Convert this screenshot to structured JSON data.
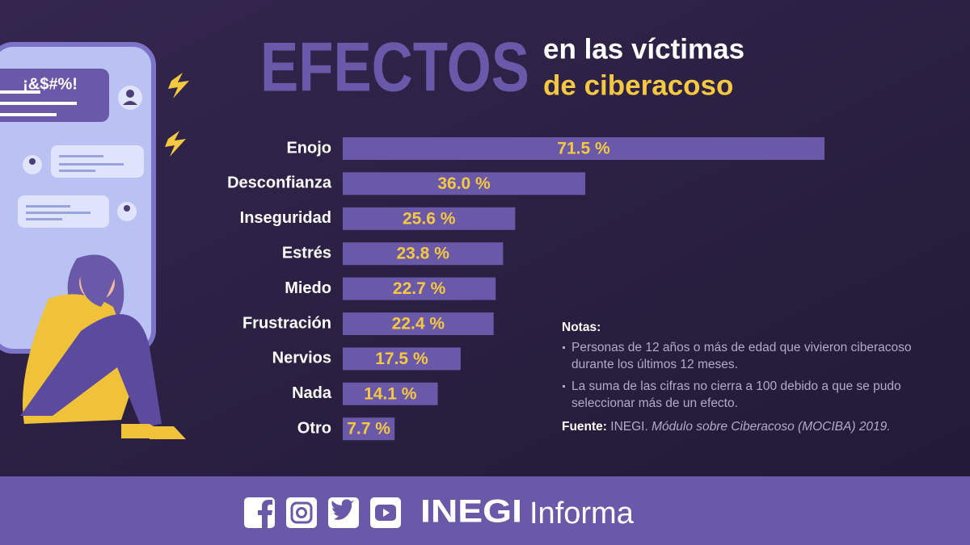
{
  "chart_data": {
    "type": "hbar",
    "title": "EFECTOS",
    "subtitle": [
      "en las víctimas",
      "de ciberacoso"
    ],
    "categories": [
      "Enojo",
      "Desconfianza",
      "Inseguridad",
      "Estrés",
      "Miedo",
      "Frustración",
      "Nervios",
      "Nada",
      "Otro"
    ],
    "values": [
      71.5,
      36.0,
      25.6,
      23.8,
      22.7,
      22.4,
      17.5,
      14.1,
      7.7
    ],
    "value_labels": [
      "71.5 %",
      "36.0 %",
      "25.6 %",
      "23.8 %",
      "22.7 %",
      "22.4 %",
      "17.5 %",
      "14.1 %",
      "7.7 %"
    ],
    "color": "#6a58a8",
    "label_color": "#f5c842"
  },
  "bubble_text": "¡&$#%!",
  "notes": {
    "heading": "Notas:",
    "items": [
      "Personas de 12 años o más de edad que vivieron ciberacoso durante los últimos 12 meses.",
      "La suma de las cifras no cierra a 100 debido a que se pudo seleccionar más de un efecto."
    ]
  },
  "source": {
    "label": "Fuente:",
    "org": "INEGI.",
    "title": "Módulo sobre Ciberacoso (MOCIBA) 2019."
  },
  "footer": {
    "brand": "INEGI",
    "suffix": "Informa"
  }
}
